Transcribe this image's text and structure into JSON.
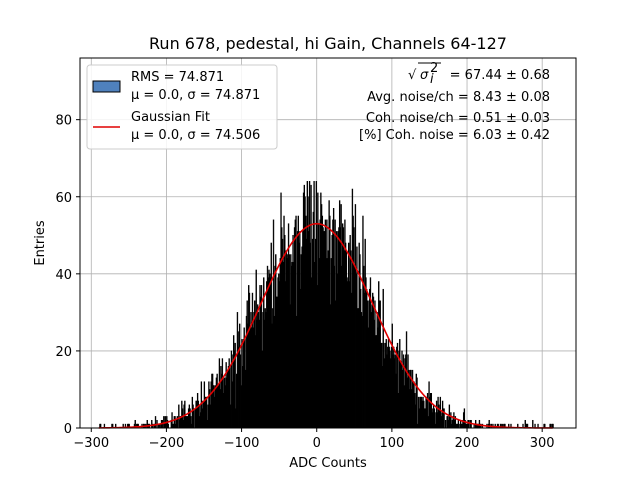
{
  "chart_data": {
    "type": "bar",
    "title": "Run 678, pedestal, hi Gain, Channels 64-127",
    "xlabel": "ADC Counts",
    "ylabel": "Entries",
    "xlim": [
      -315,
      345
    ],
    "ylim": [
      0,
      96
    ],
    "grid": true,
    "x_ticks": [
      -300,
      -200,
      -100,
      0,
      100,
      200,
      300
    ],
    "y_ticks": [
      0,
      20,
      40,
      60,
      80
    ],
    "x_tick_labels": [
      "−300",
      "−200",
      "−100",
      "0",
      "100",
      "200",
      "300"
    ],
    "y_tick_labels": [
      "0",
      "20",
      "40",
      "60",
      "80"
    ],
    "legend_position": "upper-left",
    "series": [
      {
        "name": "RMS = 74.871",
        "name_line2": "μ = 0.0, σ = 74.871",
        "kind": "histogram",
        "face_color": "#4f81bd",
        "edge_color": "#000000",
        "mean": 0.0,
        "sigma": 74.871,
        "x_range": [
          -290,
          315
        ],
        "bin_width": 1,
        "peak_entries": 70
      },
      {
        "name": "Gaussian Fit",
        "name_line2": "μ = 0.0, σ = 74.506",
        "kind": "line",
        "color": "#e00000",
        "mean": 0.0,
        "sigma": 74.506,
        "amplitude": 53
      }
    ],
    "annotations": {
      "sqrt_prefix": "√",
      "sigma_i2": "σ",
      "sigma_sup": "2",
      "sigma_sub": "i",
      "line1_value": " = 67.44 ± 0.68",
      "line2": "Avg. noise/ch = 8.43 ± 0.08",
      "line3": "Coh. noise/ch = 0.51 ± 0.03",
      "line4": "[%] Coh. noise = 6.03 ± 0.42"
    }
  }
}
